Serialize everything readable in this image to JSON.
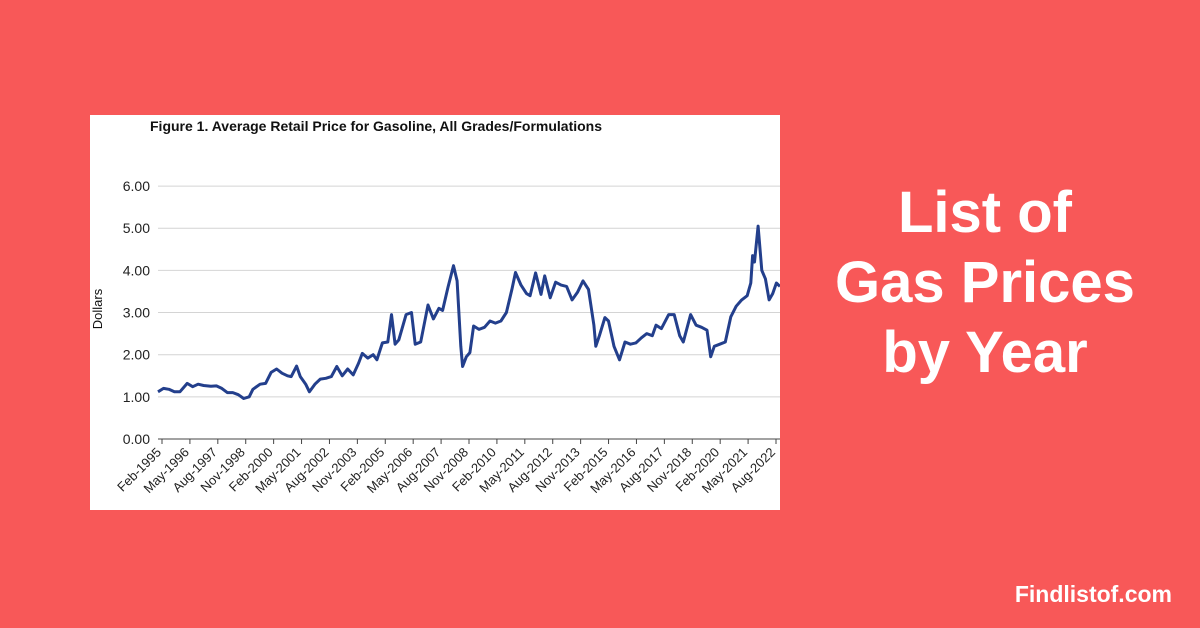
{
  "accent": "#f85858",
  "line_color": "#233f8c",
  "headline": {
    "line1": "List of",
    "line2": "Gas Prices",
    "line3": "by Year"
  },
  "site": "Findlistof.com",
  "chart_data": {
    "type": "line",
    "title": "Figure 1. Average Retail Price for Gasoline, All Grades/Formulations",
    "xlabel": "",
    "ylabel": "Dollars",
    "ylim": [
      0,
      6.5
    ],
    "yticks": [
      "0.00",
      "1.00",
      "2.00",
      "3.00",
      "4.00",
      "5.00",
      "6.00"
    ],
    "grid": true,
    "x_tick_labels": [
      "Feb-1995",
      "May-1996",
      "Aug-1997",
      "Nov-1998",
      "Feb-2000",
      "May-2001",
      "Aug-2002",
      "Nov-2003",
      "Feb-2005",
      "May-2006",
      "Aug-2007",
      "Nov-2008",
      "Feb-2010",
      "May-2011",
      "Aug-2012",
      "Nov-2013",
      "Feb-2015",
      "May-2016",
      "Aug-2017",
      "Nov-2018",
      "Feb-2020",
      "May-2021",
      "Aug-2022"
    ],
    "x_range": [
      "1995-01",
      "2023-06"
    ],
    "series": [
      {
        "points": [
          [
            "1995-01",
            1.12
          ],
          [
            "1995-04",
            1.2
          ],
          [
            "1995-07",
            1.18
          ],
          [
            "1995-10",
            1.12
          ],
          [
            "1996-01",
            1.12
          ],
          [
            "1996-05",
            1.32
          ],
          [
            "1996-08",
            1.24
          ],
          [
            "1996-11",
            1.3
          ],
          [
            "1997-02",
            1.27
          ],
          [
            "1997-06",
            1.25
          ],
          [
            "1997-09",
            1.26
          ],
          [
            "1997-12",
            1.2
          ],
          [
            "1998-03",
            1.1
          ],
          [
            "1998-06",
            1.1
          ],
          [
            "1998-09",
            1.05
          ],
          [
            "1998-12",
            0.96
          ],
          [
            "1999-03",
            1.0
          ],
          [
            "1999-05",
            1.18
          ],
          [
            "1999-09",
            1.3
          ],
          [
            "1999-12",
            1.32
          ],
          [
            "2000-03",
            1.58
          ],
          [
            "2000-06",
            1.66
          ],
          [
            "2000-09",
            1.56
          ],
          [
            "2000-12",
            1.5
          ],
          [
            "2001-02",
            1.48
          ],
          [
            "2001-05",
            1.73
          ],
          [
            "2001-07",
            1.48
          ],
          [
            "2001-10",
            1.3
          ],
          [
            "2001-12",
            1.12
          ],
          [
            "2002-03",
            1.3
          ],
          [
            "2002-06",
            1.42
          ],
          [
            "2002-09",
            1.44
          ],
          [
            "2002-12",
            1.48
          ],
          [
            "2003-03",
            1.72
          ],
          [
            "2003-06",
            1.5
          ],
          [
            "2003-09",
            1.66
          ],
          [
            "2003-12",
            1.52
          ],
          [
            "2004-03",
            1.8
          ],
          [
            "2004-05",
            2.03
          ],
          [
            "2004-08",
            1.92
          ],
          [
            "2004-11",
            2.0
          ],
          [
            "2005-01",
            1.88
          ],
          [
            "2005-04",
            2.28
          ],
          [
            "2005-07",
            2.3
          ],
          [
            "2005-09",
            2.95
          ],
          [
            "2005-11",
            2.25
          ],
          [
            "2006-01",
            2.35
          ],
          [
            "2006-05",
            2.95
          ],
          [
            "2006-08",
            3.0
          ],
          [
            "2006-10",
            2.25
          ],
          [
            "2007-01",
            2.3
          ],
          [
            "2007-05",
            3.18
          ],
          [
            "2007-08",
            2.85
          ],
          [
            "2007-11",
            3.1
          ],
          [
            "2008-01",
            3.05
          ],
          [
            "2008-04",
            3.6
          ],
          [
            "2008-07",
            4.11
          ],
          [
            "2008-09",
            3.75
          ],
          [
            "2008-11",
            2.2
          ],
          [
            "2008-12",
            1.72
          ],
          [
            "2009-02",
            1.95
          ],
          [
            "2009-04",
            2.05
          ],
          [
            "2009-06",
            2.68
          ],
          [
            "2009-09",
            2.6
          ],
          [
            "2009-12",
            2.65
          ],
          [
            "2010-03",
            2.8
          ],
          [
            "2010-06",
            2.75
          ],
          [
            "2010-09",
            2.8
          ],
          [
            "2010-12",
            3.0
          ],
          [
            "2011-03",
            3.55
          ],
          [
            "2011-05",
            3.95
          ],
          [
            "2011-08",
            3.65
          ],
          [
            "2011-11",
            3.45
          ],
          [
            "2012-01",
            3.4
          ],
          [
            "2012-04",
            3.94
          ],
          [
            "2012-07",
            3.43
          ],
          [
            "2012-09",
            3.87
          ],
          [
            "2012-12",
            3.35
          ],
          [
            "2013-03",
            3.72
          ],
          [
            "2013-06",
            3.65
          ],
          [
            "2013-09",
            3.62
          ],
          [
            "2013-12",
            3.3
          ],
          [
            "2014-03",
            3.48
          ],
          [
            "2014-06",
            3.75
          ],
          [
            "2014-09",
            3.55
          ],
          [
            "2014-12",
            2.7
          ],
          [
            "2015-01",
            2.2
          ],
          [
            "2015-03",
            2.45
          ],
          [
            "2015-06",
            2.88
          ],
          [
            "2015-08",
            2.8
          ],
          [
            "2015-11",
            2.2
          ],
          [
            "2016-02",
            1.88
          ],
          [
            "2016-05",
            2.3
          ],
          [
            "2016-08",
            2.25
          ],
          [
            "2016-11",
            2.28
          ],
          [
            "2017-02",
            2.4
          ],
          [
            "2017-05",
            2.5
          ],
          [
            "2017-08",
            2.45
          ],
          [
            "2017-10",
            2.7
          ],
          [
            "2018-01",
            2.62
          ],
          [
            "2018-05",
            2.95
          ],
          [
            "2018-08",
            2.95
          ],
          [
            "2018-11",
            2.45
          ],
          [
            "2019-01",
            2.3
          ],
          [
            "2019-05",
            2.95
          ],
          [
            "2019-08",
            2.7
          ],
          [
            "2019-11",
            2.65
          ],
          [
            "2020-02",
            2.58
          ],
          [
            "2020-04",
            1.95
          ],
          [
            "2020-06",
            2.2
          ],
          [
            "2020-09",
            2.25
          ],
          [
            "2020-12",
            2.3
          ],
          [
            "2021-03",
            2.9
          ],
          [
            "2021-06",
            3.15
          ],
          [
            "2021-09",
            3.3
          ],
          [
            "2021-12",
            3.4
          ],
          [
            "2022-02",
            3.7
          ],
          [
            "2022-03",
            4.35
          ],
          [
            "2022-04",
            4.2
          ],
          [
            "2022-06",
            5.05
          ],
          [
            "2022-08",
            4.0
          ],
          [
            "2022-10",
            3.8
          ],
          [
            "2022-12",
            3.3
          ],
          [
            "2023-02",
            3.45
          ],
          [
            "2023-04",
            3.7
          ],
          [
            "2023-06",
            3.62
          ]
        ]
      }
    ]
  }
}
